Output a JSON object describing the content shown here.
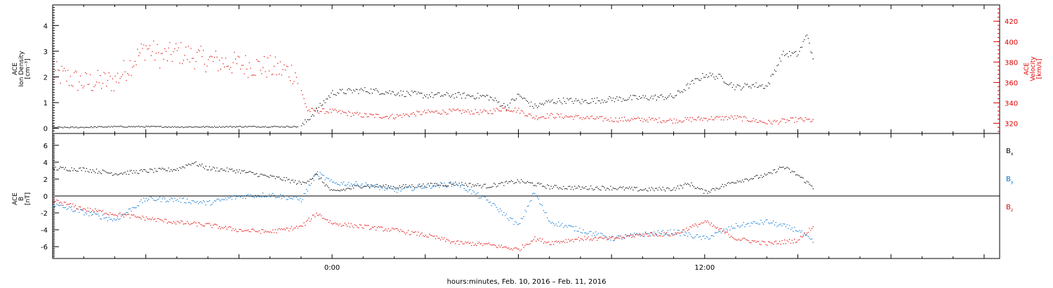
{
  "figure": {
    "xaxis_title": "hours:minutes, Feb. 10, 2016 – Feb. 11, 2016",
    "time_tick_labels": [
      "0:00",
      "12:00"
    ]
  },
  "colors": {
    "black": "#000000",
    "red": "#e00000",
    "blue": "#0070d0",
    "axis": "#000000"
  },
  "chart_data": [
    {
      "type": "scatter",
      "title": "",
      "xlabel": "hours:minutes, Feb. 10, 2016 – Feb. 11, 2016",
      "ylabel_left": [
        "ACE",
        "Ion Density",
        "[cm⁻³]"
      ],
      "ylabel_right": [
        "ACE",
        "Velocity",
        "[km/s]"
      ],
      "xlim_hours": [
        -9,
        21.5
      ],
      "ylim_left": [
        -0.2,
        4.8
      ],
      "ylim_right": [
        310,
        436
      ],
      "yticks_left": [
        0,
        1,
        2,
        3,
        4
      ],
      "yticks_right": [
        320,
        340,
        360,
        380,
        400,
        420
      ],
      "series": [
        {
          "name": "Ion Density",
          "axis": "left",
          "color": "black",
          "x_hours": [
            -9,
            -8.2,
            -7,
            -6,
            -5,
            -4,
            -3,
            -2,
            -1,
            0,
            1,
            2,
            3,
            4,
            5,
            5.6,
            6,
            6.5,
            7,
            7.5,
            8,
            9,
            10,
            11,
            11.5,
            12,
            12.5,
            13,
            13.5,
            14,
            14.5,
            15,
            15.3,
            15.5
          ],
          "values": [
            0.05,
            0.05,
            0.08,
            0.08,
            0.07,
            0.07,
            0.08,
            0.08,
            0.08,
            1.4,
            1.5,
            1.4,
            1.3,
            1.3,
            1.25,
            0.85,
            1.3,
            0.85,
            1.05,
            1.1,
            1.05,
            1.15,
            1.2,
            1.25,
            1.7,
            2.1,
            2.0,
            1.6,
            1.7,
            1.65,
            2.9,
            2.9,
            3.7,
            2.5
          ]
        },
        {
          "name": "Velocity",
          "axis": "right",
          "color": "red",
          "x_hours": [
            -9,
            -8,
            -7,
            -6,
            -5.5,
            -5,
            -4,
            -3,
            -2,
            -1.2,
            -0.8,
            0,
            1,
            2,
            3,
            4,
            5,
            5.5,
            6,
            6.5,
            7,
            8,
            9,
            10,
            11,
            12,
            13,
            14,
            15,
            15.5
          ],
          "values": [
            370,
            360,
            362,
            395,
            385,
            390,
            382,
            378,
            375,
            370,
            333,
            332,
            328,
            327,
            331,
            332,
            331,
            335,
            333,
            326,
            328,
            326,
            324,
            324,
            323,
            325,
            326,
            321,
            324,
            323
          ]
        }
      ]
    },
    {
      "type": "scatter",
      "title": "",
      "xlabel": "hours:minutes, Feb. 10, 2016 – Feb. 11, 2016",
      "ylabel_left": [
        "ACE",
        "B",
        "[nT]"
      ],
      "xlim_hours": [
        -9,
        21.5
      ],
      "ylim": [
        -7.4,
        7.4
      ],
      "yticks": [
        -6,
        -4,
        -2,
        0,
        2,
        4,
        6
      ],
      "zero_line": true,
      "legend_placement": "right",
      "series": [
        {
          "name": "Bx",
          "color": "black",
          "x_hours": [
            -9,
            -8,
            -7,
            -6,
            -5,
            -4.5,
            -4,
            -3,
            -2,
            -1.5,
            -1,
            -0.5,
            0,
            1,
            2,
            3,
            4,
            5,
            6,
            7,
            8,
            9,
            10,
            11,
            11.5,
            12,
            13,
            14,
            14.5,
            15,
            15.5
          ],
          "values": [
            3.3,
            3.2,
            2.7,
            3.0,
            3.2,
            4.0,
            3.3,
            3.0,
            2.3,
            2.0,
            1.5,
            2.5,
            0.5,
            1.3,
            1.1,
            1.3,
            1.5,
            1.2,
            1.8,
            1.1,
            1.0,
            1.0,
            0.8,
            0.9,
            1.5,
            0.5,
            1.8,
            2.5,
            3.5,
            2.5,
            1.0
          ]
        },
        {
          "name": "By",
          "color": "blue",
          "x_hours": [
            -9,
            -8,
            -7,
            -6,
            -5,
            -4,
            -3,
            -2,
            -1,
            -0.5,
            0,
            1,
            2,
            3,
            4,
            5,
            6,
            6.5,
            7,
            8,
            9,
            10,
            11,
            12,
            13,
            14,
            15,
            15.5
          ],
          "values": [
            -1.0,
            -1.9,
            -2.8,
            -0.3,
            -0.4,
            -0.8,
            0.0,
            0.2,
            -0.4,
            2.8,
            1.6,
            1.4,
            0.7,
            1.2,
            1.5,
            -0.5,
            -3.5,
            0.5,
            -3.0,
            -4.0,
            -5.0,
            -4.5,
            -4.2,
            -5.0,
            -3.5,
            -3.0,
            -4.0,
            -5.5
          ]
        },
        {
          "name": "Bz",
          "color": "red",
          "x_hours": [
            -9,
            -8,
            -7,
            -6,
            -5,
            -4,
            -3,
            -2,
            -1,
            -0.5,
            0,
            1,
            2,
            3,
            4,
            5,
            6,
            6.5,
            7,
            8,
            9,
            10,
            11,
            12,
            13,
            14,
            15,
            15.5
          ],
          "values": [
            -0.5,
            -1.5,
            -2.1,
            -2.6,
            -3.1,
            -3.4,
            -4.0,
            -4.2,
            -3.6,
            -2.0,
            -3.2,
            -3.6,
            -4.0,
            -4.6,
            -5.5,
            -5.7,
            -6.3,
            -5.0,
            -5.5,
            -5.0,
            -5.0,
            -4.5,
            -4.5,
            -3.0,
            -5.0,
            -5.6,
            -5.2,
            -3.5
          ]
        }
      ]
    }
  ]
}
